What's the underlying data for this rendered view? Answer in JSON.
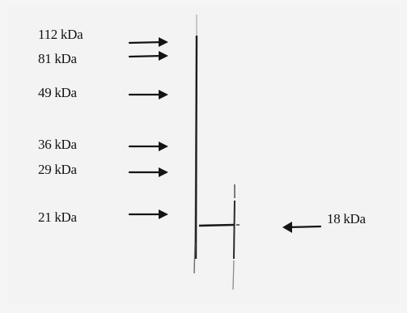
{
  "figure": {
    "markers": [
      {
        "id": "112",
        "label": "112 kDa"
      },
      {
        "id": "81",
        "label": "81 kDa"
      },
      {
        "id": "49",
        "label": "49 kDa"
      },
      {
        "id": "36",
        "label": "36 kDa"
      },
      {
        "id": "29",
        "label": "29 kDa"
      },
      {
        "id": "21",
        "label": "21 kDa"
      }
    ],
    "band_label": "18 kDa",
    "colors": {
      "ink": "#141414",
      "background": "#f5f5f5"
    }
  }
}
